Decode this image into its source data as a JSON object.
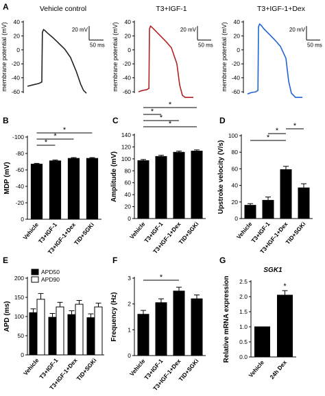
{
  "colors": {
    "trace_vehicle": "#222222",
    "trace_t3": "#b22222",
    "trace_dex": "#1f63d6",
    "bar": "#000000",
    "apd90": "#ffffff"
  },
  "chart_data": [
    {
      "panel": "A1",
      "type": "line",
      "title": "Vehicle control",
      "ylabel": "membrane potential (mV)",
      "yticks": [
        -60,
        -40,
        -20,
        0,
        20,
        40
      ],
      "ylim": [
        -60,
        40
      ],
      "scalebar": {
        "mv": "20 mV",
        "ms": "50 ms"
      },
      "x": [
        0,
        20,
        40,
        50,
        52,
        56,
        60,
        70,
        90,
        110,
        130,
        150,
        170,
        185,
        195,
        205
      ],
      "y": [
        -52,
        -50,
        -48,
        -46,
        25,
        29,
        28,
        24,
        17,
        9,
        1,
        -11,
        -31,
        -49,
        -58,
        -62
      ]
    },
    {
      "panel": "A2",
      "type": "line",
      "title": "T3+IGF-1",
      "ylabel": "membrane potential (mV)",
      "yticks": [
        -60,
        -40,
        -20,
        0,
        20,
        40
      ],
      "ylim": [
        -60,
        40
      ],
      "scalebar": {
        "mv": "20 mV",
        "ms": "50 ms"
      },
      "x": [
        0,
        15,
        30,
        38,
        40,
        44,
        50,
        60,
        80,
        100,
        120,
        140,
        150,
        160,
        170,
        200
      ],
      "y": [
        -60,
        -58,
        -57,
        -55,
        30,
        34,
        32,
        28,
        20,
        12,
        3,
        -20,
        -50,
        -65,
        -68,
        -68
      ]
    },
    {
      "panel": "A3",
      "type": "line",
      "title": "T3+IGF-1+Dex",
      "ylabel": "membrane potential (mV)",
      "yticks": [
        -60,
        -40,
        -20,
        0,
        20,
        40
      ],
      "ylim": [
        -60,
        40
      ],
      "scalebar": {
        "mv": "20 mV",
        "ms": "50 ms"
      },
      "x": [
        0,
        15,
        30,
        38,
        40,
        44,
        50,
        60,
        80,
        100,
        120,
        140,
        150,
        160,
        175,
        200
      ],
      "y": [
        -63,
        -61,
        -60,
        -58,
        33,
        37,
        35,
        30,
        22,
        14,
        5,
        -12,
        -45,
        -62,
        -68,
        -68
      ]
    },
    {
      "panel": "B",
      "type": "bar",
      "ylabel": "MDP (mV)",
      "categories": [
        "Vehicle",
        "T3+IGF-1",
        "T3+IGF-1+Dex",
        "TID+SGKi"
      ],
      "values": [
        -67,
        -71,
        -74,
        -74
      ],
      "errors": [
        1,
        1,
        1,
        1
      ],
      "yticks": [
        0,
        -20,
        -40,
        -60,
        -80,
        -100
      ],
      "ylim": [
        0,
        -100
      ]
    },
    {
      "panel": "C",
      "type": "bar",
      "ylabel": "Amplitude (mV)",
      "categories": [
        "Vehicle",
        "T3+IGF-1",
        "T3+IGF-1+Dex",
        "TID+SGKi"
      ],
      "values": [
        97,
        104,
        111,
        113
      ],
      "errors": [
        2,
        2,
        2,
        2
      ],
      "yticks": [
        0,
        20,
        40,
        60,
        80,
        100,
        120,
        140
      ],
      "ylim": [
        0,
        140
      ]
    },
    {
      "panel": "D",
      "type": "bar",
      "ylabel": "Upstroke velocity (V/s)",
      "categories": [
        "Vehicle",
        "T3+IGF-1",
        "T3+IGF-1+Dex",
        "TID+SGKi"
      ],
      "values": [
        16,
        22,
        59,
        37
      ],
      "errors": [
        2,
        4,
        4,
        5
      ],
      "yticks": [
        0,
        20,
        40,
        60,
        80,
        100
      ],
      "ylim": [
        0,
        100
      ]
    },
    {
      "panel": "E",
      "type": "bar",
      "ylabel": "APD (ms)",
      "categories": [
        "Vehicle",
        "T3+IGF-1",
        "T3+IGF-1+Dex",
        "TID+SGKi"
      ],
      "series": [
        {
          "name": "APD50",
          "values": [
            110,
            98,
            105,
            97
          ],
          "errors": [
            10,
            10,
            10,
            10
          ]
        },
        {
          "name": "APD90",
          "values": [
            145,
            125,
            132,
            125
          ],
          "errors": [
            15,
            12,
            10,
            10
          ]
        }
      ],
      "legend": "top-left",
      "yticks": [
        0,
        50,
        100,
        150,
        200
      ],
      "ylim": [
        0,
        200
      ]
    },
    {
      "panel": "F",
      "type": "bar",
      "ylabel": "Frequency (Hz)",
      "categories": [
        "Vehicle",
        "T3+IGF-1",
        "T3+IGF-1+Dex",
        "TID+SGKi"
      ],
      "values": [
        1.6,
        2.05,
        2.5,
        2.2
      ],
      "errors": [
        0.15,
        0.15,
        0.15,
        0.15
      ],
      "yticks": [
        0,
        1,
        2,
        3
      ],
      "ylim": [
        0,
        3
      ]
    },
    {
      "panel": "G",
      "type": "bar",
      "title": "SGK1",
      "ylabel": "Relative mRNA expression",
      "categories": [
        "Vehicle",
        "24h Dex"
      ],
      "values": [
        1.0,
        2.05
      ],
      "errors": [
        0,
        0.15
      ],
      "yticks": [
        0.0,
        0.5,
        1.0,
        1.5,
        2.0,
        2.5
      ],
      "ylim": [
        0,
        2.5
      ]
    }
  ],
  "panel_letters": [
    "A",
    "B",
    "C",
    "D",
    "E",
    "F",
    "G"
  ],
  "significance": "*"
}
